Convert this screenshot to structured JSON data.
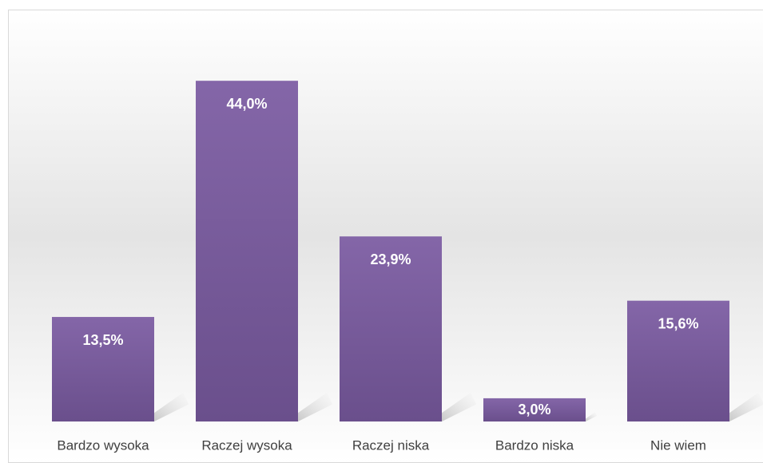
{
  "chart_data": {
    "type": "bar",
    "categories": [
      "Bardzo wysoka",
      "Raczej wysoka",
      "Raczej niska",
      "Bardzo niska",
      "Nie wiem"
    ],
    "values": [
      13.5,
      44.0,
      23.9,
      3.0,
      15.6
    ],
    "value_labels": [
      "13,5%",
      "44,0%",
      "23,9%",
      "3,0%",
      "15,6%"
    ],
    "color": "#7a5e9e",
    "ylim": [
      0,
      50
    ]
  }
}
